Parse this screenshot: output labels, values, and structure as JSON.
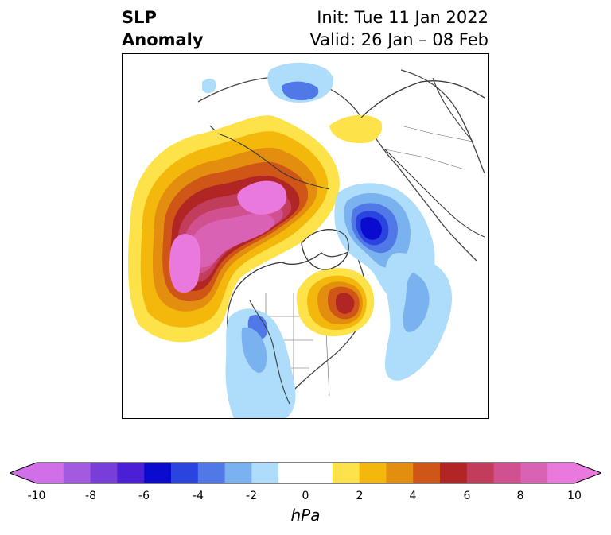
{
  "title": {
    "variable": "SLP",
    "subtitle": "Anomaly",
    "init": "Init: Tue 11 Jan 2022",
    "valid": "Valid: 26 Jan – 08 Feb"
  },
  "colorbar": {
    "unit": "hPa",
    "ticks": [
      "-10",
      "-8",
      "-6",
      "-4",
      "-2",
      "0",
      "2",
      "4",
      "6",
      "8",
      "10"
    ],
    "range": [
      -10,
      10
    ],
    "interval": 1,
    "colors": [
      "#d16fe8",
      "#a45ae0",
      "#7a3ed8",
      "#4a1fd6",
      "#0b0bd0",
      "#2a45df",
      "#5078e6",
      "#7ab2f0",
      "#aedcfb",
      "#ffffff",
      "#ffffff",
      "#fde24a",
      "#f3b80b",
      "#e48e10",
      "#cf5616",
      "#b12525",
      "#c23d5c",
      "#d05090",
      "#da62b4",
      "#e979dc"
    ],
    "extend": "both"
  },
  "map": {
    "projection": "north-polar-stereographic",
    "field": "SLP Anomaly",
    "features": [
      {
        "name": "positive-anomaly-north-pacific-arctic",
        "sign": "positive",
        "peak_hpa": 10
      },
      {
        "name": "negative-anomaly-europe-arctic",
        "sign": "negative",
        "peak_hpa": -7
      },
      {
        "name": "positive-anomaly-eastern-canada",
        "sign": "positive",
        "peak_hpa": 7
      },
      {
        "name": "negative-anomaly-western-north-america",
        "sign": "negative",
        "peak_hpa": -3
      },
      {
        "name": "negative-anomaly-north-atlantic",
        "sign": "negative",
        "peak_hpa": -3
      },
      {
        "name": "negative-anomaly-east-asia",
        "sign": "negative",
        "peak_hpa": -4
      },
      {
        "name": "positive-anomaly-siberia",
        "sign": "positive",
        "peak_hpa": 1
      }
    ]
  }
}
